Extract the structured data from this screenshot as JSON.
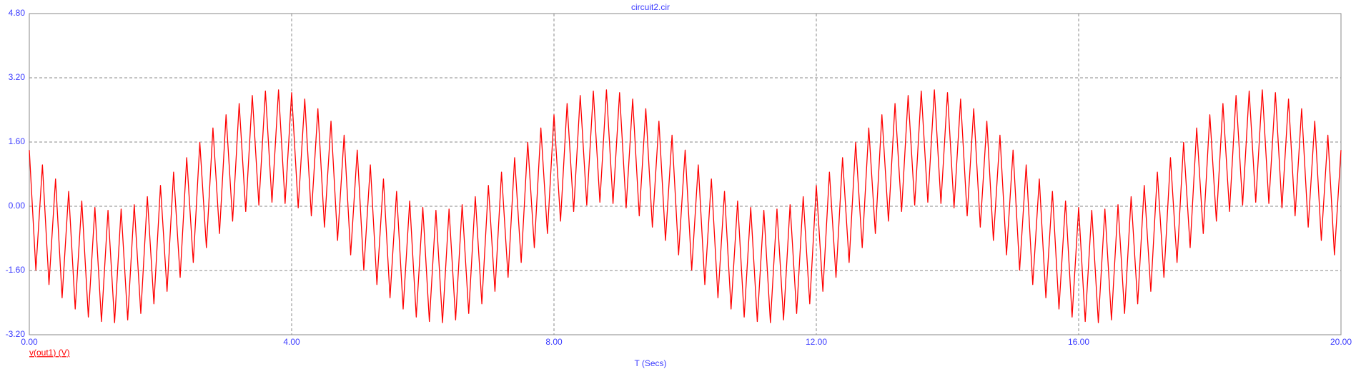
{
  "chart_data": {
    "type": "line",
    "title": "circuit2.cir",
    "x_label": "T (Secs)",
    "grid": true,
    "xlim": [
      0,
      20
    ],
    "ylim": [
      -3.2,
      4.8
    ],
    "xticks": [
      {
        "value": 0,
        "label": "0.00"
      },
      {
        "value": 4,
        "label": "4.00"
      },
      {
        "value": 8,
        "label": "8.00"
      },
      {
        "value": 12,
        "label": "12.00"
      },
      {
        "value": 16,
        "label": "16.00"
      },
      {
        "value": 20,
        "label": "20.00"
      }
    ],
    "yticks": [
      {
        "value": -3.2,
        "label": "-3.20"
      },
      {
        "value": -1.6,
        "label": "-1.60"
      },
      {
        "value": 0,
        "label": "0.00"
      },
      {
        "value": 1.6,
        "label": "1.60"
      },
      {
        "value": 3.2,
        "label": "3.20"
      },
      {
        "value": 4.8,
        "label": "4.80"
      }
    ],
    "x": [
      0,
      0.1,
      0.2,
      0.3,
      0.4,
      0.5,
      0.6,
      0.7,
      0.8,
      0.9,
      1,
      1.1,
      1.2,
      1.3,
      1.4,
      1.5,
      1.6,
      1.7,
      1.8,
      1.9,
      2,
      2.1,
      2.2,
      2.3,
      2.4,
      2.5,
      2.6,
      2.7,
      2.8,
      2.9,
      3,
      3.1,
      3.2,
      3.3,
      3.4,
      3.5,
      3.6,
      3.7,
      3.8,
      3.9,
      4,
      4.1,
      4.2,
      4.3,
      4.4,
      4.5,
      4.6,
      4.7,
      4.8,
      4.9,
      5,
      5.1,
      5.2,
      5.3,
      5.4,
      5.5,
      5.6,
      5.7,
      5.8,
      5.9,
      6,
      6.1,
      6.2,
      6.3,
      6.4,
      6.5,
      6.6,
      6.7,
      6.8,
      6.9,
      7,
      7.1,
      7.2,
      7.3,
      7.4,
      7.5,
      7.6,
      7.7,
      7.8,
      7.9,
      8,
      8.1,
      8.2,
      8.3,
      8.4,
      8.5,
      8.6,
      8.7,
      8.8,
      8.9,
      9,
      9.1,
      9.2,
      9.3,
      9.4,
      9.5,
      9.6,
      9.7,
      9.8,
      9.9,
      10,
      10.1,
      10.2,
      10.3,
      10.4,
      10.5,
      10.6,
      10.7,
      10.8,
      10.9,
      11,
      11.1,
      11.2,
      11.3,
      11.4,
      11.5,
      11.6,
      11.7,
      11.8,
      11.9,
      12,
      12.1,
      12.2,
      12.3,
      12.4,
      12.5,
      12.6,
      12.7,
      12.8,
      12.9,
      13,
      13.1,
      13.2,
      13.3,
      13.4,
      13.5,
      13.6,
      13.7,
      13.8,
      13.9,
      14,
      14.1,
      14.2,
      14.3,
      14.4,
      14.5,
      14.6,
      14.7,
      14.8,
      14.9,
      15,
      15.1,
      15.2,
      15.3,
      15.4,
      15.5,
      15.6,
      15.7,
      15.8,
      15.9,
      16,
      16.1,
      16.2,
      16.3,
      16.4,
      16.5,
      16.6,
      16.7,
      16.8,
      16.9,
      17,
      17.1,
      17.2,
      17.3,
      17.4,
      17.5,
      17.6,
      17.7,
      17.8,
      17.9,
      18,
      18.1,
      18.2,
      18.3,
      18.4,
      18.5,
      18.6,
      18.7,
      18.8,
      18.9,
      19,
      19.1,
      19.2,
      19.3,
      19.4,
      19.5,
      19.6,
      19.7,
      19.8,
      19.9,
      20
    ],
    "series": [
      {
        "name": "v(out1) (V)",
        "color": "#ff0000",
        "values": [
          1.4,
          -1.59,
          1.03,
          -1.95,
          0.68,
          -2.28,
          0.37,
          -2.56,
          0.13,
          -2.76,
          -0.03,
          -2.87,
          -0.1,
          -2.9,
          -0.07,
          -2.83,
          0.04,
          -2.67,
          0.24,
          -2.43,
          0.52,
          -2.12,
          0.85,
          -1.77,
          1.21,
          -1.4,
          1.59,
          -1.03,
          1.95,
          -0.68,
          2.28,
          -0.37,
          2.56,
          -0.13,
          2.76,
          0.03,
          2.87,
          0.1,
          2.9,
          0.07,
          2.83,
          -0.04,
          2.67,
          -0.24,
          2.43,
          -0.52,
          2.12,
          -0.85,
          1.77,
          -1.21,
          1.4,
          -1.59,
          1.03,
          -1.95,
          0.68,
          -2.28,
          0.37,
          -2.56,
          0.13,
          -2.76,
          -0.03,
          -2.87,
          -0.1,
          -2.9,
          -0.07,
          -2.83,
          0.04,
          -2.67,
          0.24,
          -2.43,
          0.52,
          -2.12,
          0.85,
          -1.77,
          1.21,
          -1.4,
          1.59,
          -1.03,
          1.95,
          -0.68,
          2.28,
          -0.37,
          2.56,
          -0.13,
          2.76,
          0.03,
          2.87,
          0.1,
          2.9,
          0.07,
          2.83,
          -0.04,
          2.67,
          -0.24,
          2.43,
          -0.52,
          2.12,
          -0.85,
          1.77,
          -1.21,
          1.4,
          -1.59,
          1.03,
          -1.95,
          0.68,
          -2.28,
          0.37,
          -2.56,
          0.13,
          -2.76,
          -0.03,
          -2.87,
          -0.1,
          -2.9,
          -0.07,
          -2.83,
          0.04,
          -2.67,
          0.24,
          -2.43,
          0.52,
          -2.12,
          0.85,
          -1.77,
          1.21,
          -1.4,
          1.59,
          -1.03,
          1.95,
          -0.68,
          2.28,
          -0.37,
          2.56,
          -0.13,
          2.76,
          0.03,
          2.87,
          0.1,
          2.9,
          0.07,
          2.83,
          -0.04,
          2.67,
          -0.24,
          2.43,
          -0.52,
          2.12,
          -0.85,
          1.77,
          -1.21,
          1.4,
          -1.59,
          1.03,
          -1.95,
          0.68,
          -2.28,
          0.37,
          -2.56,
          0.13,
          -2.76,
          -0.03,
          -2.87,
          -0.1,
          -2.9,
          -0.07,
          -2.83,
          0.04,
          -2.67,
          0.24,
          -2.43,
          0.52,
          -2.12,
          0.85,
          -1.77,
          1.21,
          -1.4,
          1.59,
          -1.03,
          1.95,
          -0.68,
          2.28,
          -0.37,
          2.56,
          -0.13,
          2.76,
          0.03,
          2.87,
          0.1,
          2.9,
          0.07,
          2.83,
          -0.04,
          2.67,
          -0.24,
          2.43,
          -0.52,
          2.12,
          -0.85,
          1.77,
          -1.21,
          1.4
        ]
      }
    ]
  }
}
